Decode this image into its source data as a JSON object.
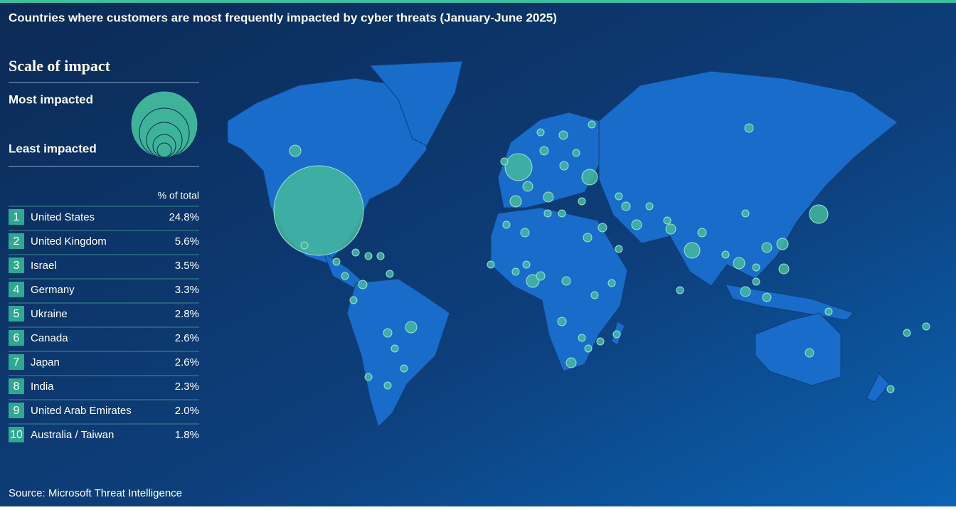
{
  "header": {
    "title": "Countries where customers are most frequently impacted by cyber threats  (January-June 2025)"
  },
  "legend": {
    "title": "Scale of impact",
    "most": "Most impacted",
    "least": "Least impacted"
  },
  "table": {
    "header": "% of total",
    "rows": [
      [
        "1",
        "United States",
        "24.8%"
      ],
      [
        "2",
        "United Kingdom",
        "5.6%"
      ],
      [
        "3",
        "Israel",
        "3.5%"
      ],
      [
        "4",
        "Germany",
        "3.3%"
      ],
      [
        "5",
        "Ukraine",
        "2.8%"
      ],
      [
        "6",
        "Canada",
        "2.6%"
      ],
      [
        "7",
        "Japan",
        "2.6%"
      ],
      [
        "8",
        "India",
        "2.3%"
      ],
      [
        "9",
        "United Arab Emirates",
        "2.0%"
      ],
      [
        "10",
        "Australia / Taiwan",
        "1.8%"
      ]
    ]
  },
  "source": "Source: Microsoft Threat Intelligence"
}
